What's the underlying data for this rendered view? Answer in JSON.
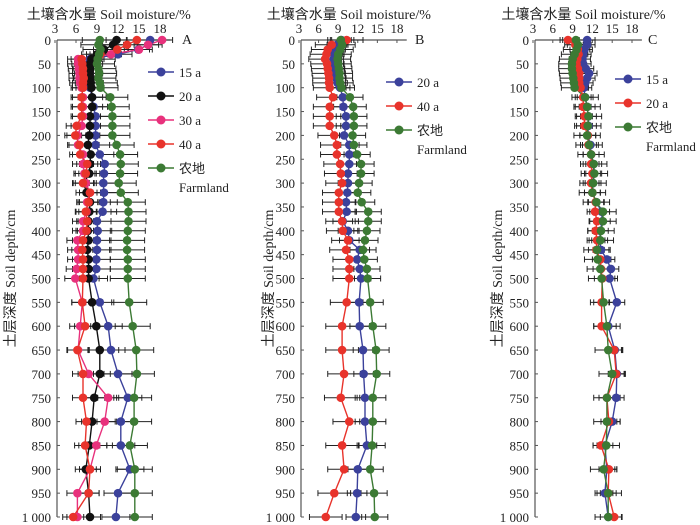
{
  "chart_data": [
    {
      "type": "line",
      "panel_label": "A",
      "title": "土壤含水量 Soil moisture/%",
      "xlabel": "土壤含水量 Soil moisture/%",
      "ylabel": "土层深度 Soil depth/cm",
      "xlim": [
        3,
        19.5
      ],
      "ylim": [
        0,
        1000
      ],
      "xticks": [
        3,
        6,
        9,
        12,
        15,
        18
      ],
      "yticks": [
        0,
        50,
        100,
        150,
        200,
        250,
        300,
        350,
        400,
        450,
        500,
        550,
        600,
        650,
        700,
        750,
        800,
        850,
        900,
        950,
        1000
      ],
      "ytick_labels": [
        "0",
        "50",
        "100",
        "150",
        "200",
        "250",
        "300",
        "350",
        "400",
        "450",
        "500",
        "550",
        "600",
        "650",
        "700",
        "750",
        "800",
        "850",
        "900",
        "950",
        "1 000"
      ],
      "legend_placement": "right",
      "depth": [
        0,
        10,
        20,
        30,
        40,
        50,
        60,
        70,
        80,
        90,
        100,
        120,
        140,
        160,
        180,
        200,
        220,
        240,
        260,
        280,
        300,
        320,
        340,
        360,
        380,
        400,
        420,
        440,
        460,
        480,
        500,
        550,
        600,
        650,
        700,
        750,
        800,
        850,
        900,
        950,
        1000
      ],
      "series": [
        {
          "name": "15 a",
          "color": "#3b419b",
          "sd": 2.0,
          "values": [
            16.6,
            16.3,
            14.9,
            12,
            8,
            7.8,
            7.6,
            7.8,
            7.7,
            7.9,
            8.0,
            8.3,
            8.5,
            8.8,
            8.8,
            8.8,
            8.8,
            9.4,
            10.1,
            10.0,
            9.9,
            10.0,
            9.9,
            9.8,
            9.0,
            9.1,
            9.0,
            9.0,
            8.9,
            8.9,
            8.5,
            9.4,
            10.6,
            11,
            12,
            13.4,
            12.4,
            12.4,
            13.7,
            12,
            11.7
          ]
        },
        {
          "name": "20 a",
          "color": "#111111",
          "sd": 1.5,
          "values": [
            11.8,
            11.3,
            10,
            9,
            8.2,
            8,
            8,
            7.9,
            8,
            8.1,
            8.2,
            8.3,
            8.3,
            8,
            8,
            7.9,
            7.7,
            8.1,
            8,
            7.9,
            7.1,
            7.5,
            8,
            7.9,
            7.8,
            7.7,
            7.8,
            7.6,
            7.8,
            7.8,
            7.8,
            8.3,
            8.9,
            9.4,
            9.4,
            8.6,
            8.3,
            7.9,
            7.4,
            7.8,
            8
          ]
        },
        {
          "name": "30 a",
          "color": "#e8317c",
          "sd": 1.5,
          "values": [
            18.3,
            16.3,
            15,
            11,
            6.3,
            6.3,
            6.4,
            6.5,
            6.5,
            6.6,
            6.8,
            7,
            7,
            7,
            6.8,
            6.2,
            6.3,
            7,
            7,
            7.2,
            7.4,
            8,
            7.6,
            7.5,
            7,
            7,
            6.2,
            6.3,
            6.3,
            6.1,
            5.9,
            6.9,
            6.6,
            6.3,
            7.8,
            10.6,
            10.1,
            8.9,
            8,
            6.2,
            6.2
          ]
        },
        {
          "name": "40 a",
          "color": "#e8332b",
          "sd": 1.5,
          "values": [
            14.7,
            13.3,
            11.9,
            9.5,
            6.8,
            6.9,
            7,
            7,
            7.1,
            7,
            7,
            6.8,
            6.8,
            6.8,
            6.1,
            5.9,
            6.5,
            6.6,
            7.6,
            7.4,
            7,
            8,
            7.8,
            7.4,
            7.6,
            7.5,
            7,
            6.9,
            7,
            7,
            7,
            6.9,
            7.3,
            6.2,
            7,
            7,
            7.5,
            7.3,
            8,
            7.8,
            5.6
          ]
        },
        {
          "name": "农地 Farmland",
          "color": "#3c7a34",
          "sd": 2.5,
          "values": [
            9.4,
            9.2,
            9.5,
            9.3,
            9.1,
            9.0,
            9.2,
            9.3,
            9.2,
            9.4,
            9.5,
            10.9,
            11.1,
            11.2,
            11.2,
            11.2,
            11.8,
            12.3,
            12.4,
            12.3,
            12.1,
            12.4,
            13.4,
            13.5,
            13.5,
            13.4,
            13.3,
            13.3,
            13.4,
            13.4,
            13.4,
            13.6,
            14.1,
            14.6,
            14.7,
            14.3,
            14.3,
            13.7,
            14.4,
            14.4,
            14.4
          ]
        }
      ]
    },
    {
      "type": "line",
      "panel_label": "B",
      "title": "土壤含水量 Soil moisture/%",
      "xlabel": "土壤含水量 Soil moisture/%",
      "ylabel": "土层深度 Soil depth/cm",
      "xlim": [
        3,
        19.5
      ],
      "ylim": [
        0,
        1000
      ],
      "xticks": [
        3,
        6,
        9,
        12,
        15,
        18
      ],
      "yticks": [
        0,
        50,
        100,
        150,
        200,
        250,
        300,
        350,
        400,
        450,
        500,
        550,
        600,
        650,
        700,
        750,
        800,
        850,
        900,
        950,
        1000
      ],
      "ytick_labels": [
        "0",
        "50",
        "100",
        "150",
        "200",
        "250",
        "300",
        "350",
        "400",
        "450",
        "500",
        "550",
        "600",
        "650",
        "700",
        "750",
        "800",
        "850",
        "900",
        "950",
        "1 000"
      ],
      "legend_placement": "right",
      "depth": [
        0,
        10,
        20,
        30,
        40,
        50,
        60,
        70,
        80,
        90,
        100,
        120,
        140,
        160,
        180,
        200,
        220,
        240,
        260,
        280,
        300,
        320,
        340,
        360,
        380,
        400,
        420,
        440,
        460,
        480,
        500,
        550,
        600,
        650,
        700,
        750,
        800,
        850,
        900,
        950,
        1000
      ],
      "series": [
        {
          "name": "20 a",
          "color": "#3b419b",
          "sd": 1.5,
          "values": [
            9.5,
            8.8,
            8.6,
            8.4,
            8.3,
            8.4,
            8.5,
            8.6,
            8.7,
            8.9,
            9.3,
            9.7,
            9.8,
            10.2,
            10.2,
            9.9,
            10.7,
            10.7,
            10.7,
            10.5,
            10.5,
            10.4,
            10.2,
            10.3,
            9.7,
            10.5,
            10.7,
            12.3,
            11.9,
            12.3,
            12.5,
            12.2,
            12.3,
            12.8,
            12.9,
            13.1,
            13.1,
            13.4,
            12.0,
            11.9,
            11.7
          ]
        },
        {
          "name": "40 a",
          "color": "#e8332b",
          "sd": 2.5,
          "values": [
            10.3,
            8,
            7.4,
            7.2,
            7.0,
            7.3,
            7.4,
            7.5,
            7.6,
            7.6,
            7.7,
            8.2,
            7.7,
            7.7,
            7.7,
            8.4,
            8.8,
            8.8,
            9.3,
            9.4,
            9.6,
            9.1,
            9.1,
            9.1,
            9.6,
            9.7,
            10.5,
            10.2,
            10.7,
            10.7,
            10.7,
            10.3,
            9.6,
            9.6,
            9.9,
            9.4,
            10.7,
            9.6,
            9.9,
            8.4,
            7.1
          ]
        },
        {
          "name": "农地 Farmland",
          "color": "#3c7a34",
          "sd": 2.0,
          "values": [
            9.4,
            9.6,
            9.3,
            9.0,
            8.9,
            9.0,
            9.1,
            9.2,
            9.2,
            9.3,
            9.5,
            10.8,
            11.3,
            11.4,
            11.4,
            11.2,
            11.4,
            11.9,
            12.5,
            12.5,
            12.2,
            12,
            12.6,
            13.6,
            13.6,
            13.4,
            13.1,
            12.8,
            13,
            13.4,
            13.5,
            13.9,
            14.3,
            14.8,
            14.9,
            14.3,
            14.3,
            14.2,
            13.9,
            14.5,
            14.6
          ]
        }
      ]
    },
    {
      "type": "line",
      "panel_label": "C",
      "title": "土壤含水量 Soil moisture/%",
      "xlabel": "土壤含水量 Soil moisture/%",
      "ylabel": "土层深度 Soil depth/cm",
      "xlim": [
        3,
        19.5
      ],
      "ylim": [
        0,
        1000
      ],
      "xticks": [
        3,
        6,
        9,
        12,
        15,
        18
      ],
      "yticks": [
        0,
        50,
        100,
        150,
        200,
        250,
        300,
        350,
        400,
        450,
        500,
        550,
        600,
        650,
        700,
        750,
        800,
        850,
        900,
        950,
        1000
      ],
      "ytick_labels": [
        "0",
        "50",
        "100",
        "150",
        "200",
        "250",
        "300",
        "350",
        "400",
        "450",
        "500",
        "550",
        "600",
        "650",
        "700",
        "750",
        "800",
        "850",
        "900",
        "950",
        "1 000"
      ],
      "legend_placement": "right",
      "depth": [
        0,
        10,
        20,
        30,
        40,
        50,
        60,
        70,
        80,
        90,
        100,
        120,
        140,
        160,
        180,
        200,
        220,
        240,
        260,
        280,
        300,
        320,
        340,
        360,
        380,
        400,
        420,
        440,
        460,
        480,
        500,
        550,
        600,
        650,
        700,
        750,
        800,
        850,
        900,
        950,
        1000
      ],
      "series": [
        {
          "name": "15 a",
          "color": "#3b419b",
          "sd": 1.2,
          "values": [
            11.2,
            11.2,
            10.8,
            10.6,
            10.5,
            10.6,
            11,
            11.5,
            11.2,
            10.9,
            10.7,
            10.9,
            11.2,
            11.4,
            11.4,
            11.3,
            11.7,
            11.8,
            12.2,
            12.2,
            12.1,
            12,
            12.6,
            13.4,
            13.5,
            13.2,
            13.1,
            13.3,
            14.2,
            14.8,
            14.6,
            15.7,
            14.4,
            15.4,
            15.7,
            15.6,
            15,
            13.9,
            14.2,
            13.9,
            14.4
          ]
        },
        {
          "name": "20 a",
          "color": "#e8332b",
          "sd": 1.2,
          "values": [
            8.3,
            9.4,
            9.8,
            9.9,
            9.7,
            9.6,
            9.8,
            10,
            10,
            10,
            10.2,
            10.6,
            10.6,
            10.8,
            10.8,
            11.3,
            11.4,
            11.8,
            11.8,
            12,
            11.8,
            12,
            12.5,
            12.4,
            12.7,
            12.5,
            12.7,
            12.6,
            13.2,
            13.3,
            13.5,
            13.4,
            13.4,
            15.3,
            15.6,
            14.2,
            14.5,
            13.3,
            14.5,
            14.4,
            15.3
          ]
        },
        {
          "name": "农地 Farmland",
          "color": "#3c7a34",
          "sd": 2.0,
          "values": [
            9.5,
            9.8,
            9.6,
            9.3,
            9.0,
            8.9,
            8.9,
            9.0,
            9.1,
            9.2,
            9.3,
            10.9,
            11.2,
            11.4,
            11.3,
            11.2,
            11.5,
            11.8,
            12.2,
            12.3,
            12.1,
            12,
            12.6,
            13.6,
            13.6,
            13.3,
            13.2,
            12.7,
            12.8,
            13.2,
            13.4,
            13.7,
            14.2,
            14.4,
            15,
            14.2,
            14.2,
            14.1,
            13.7,
            14.4,
            14.4
          ]
        }
      ]
    }
  ]
}
